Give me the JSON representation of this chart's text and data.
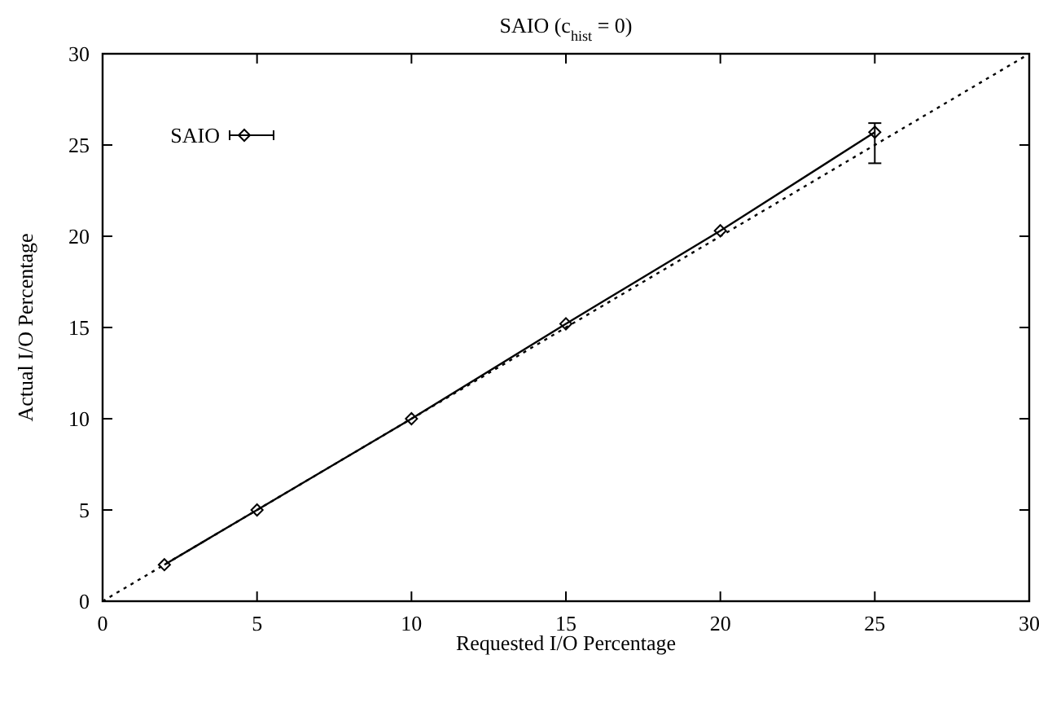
{
  "chart_data": {
    "type": "line",
    "title": "SAIO (c$_{hist}$ = 0)",
    "xlabel": "Requested I/O Percentage",
    "ylabel": "Actual I/O Percentage",
    "xlim": [
      0,
      30
    ],
    "xticks": [
      0,
      5,
      10,
      15,
      20,
      25,
      30
    ],
    "ylim": [
      0,
      30
    ],
    "yticks": [
      0,
      5,
      10,
      15,
      20,
      25,
      30
    ],
    "legend": "top left",
    "grid": false,
    "series": [
      {
        "name": "SAIO",
        "color": "#000000",
        "x": [
          2,
          5,
          10,
          15,
          20,
          25
        ],
        "values": [
          2,
          5,
          10,
          15.2,
          20.3,
          25.7
        ],
        "errors": [
          null,
          null,
          null,
          null,
          null,
          [
            24,
            26.2
          ]
        ],
        "marker": "diamond",
        "line_style": "solid"
      },
      {
        "type": "line",
        "color": "#000000",
        "x": [
          0,
          30
        ],
        "values": [
          0,
          30
        ],
        "marker": "none",
        "line_style": "dotted"
      }
    ]
  }
}
